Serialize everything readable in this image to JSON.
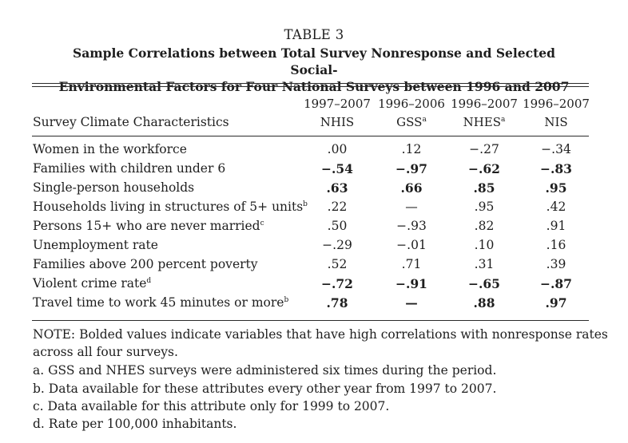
{
  "table": {
    "title": "TABLE 3",
    "caption_line1": "Sample Correlations between Total Survey Nonresponse and Selected Social-",
    "caption_line2": "Environmental Factors for Four National Surveys between 1996 and 2007",
    "row_header_label": "Survey Climate Characteristics",
    "columns": [
      {
        "years": "1997–2007",
        "name": "NHIS",
        "sup": ""
      },
      {
        "years": "1996–2006",
        "name": "GSS",
        "sup": "a"
      },
      {
        "years": "1996–2007",
        "name": "NHES",
        "sup": "a"
      },
      {
        "years": "1996–2007",
        "name": "NIS",
        "sup": ""
      }
    ],
    "rows": [
      {
        "label": "Women in the workforce",
        "sup": "",
        "bold": false,
        "values": [
          ".00",
          ".12",
          "−.27",
          "−.34"
        ]
      },
      {
        "label": "Families with children under 6",
        "sup": "",
        "bold": true,
        "values": [
          "−.54",
          "−.97",
          "−.62",
          "−.83"
        ]
      },
      {
        "label": "Single-person households",
        "sup": "",
        "bold": true,
        "values": [
          ".63",
          ".66",
          ".85",
          ".95"
        ]
      },
      {
        "label": "Households living in structures of 5+ units",
        "sup": "b",
        "bold": false,
        "values": [
          ".22",
          "—",
          ".95",
          ".42"
        ]
      },
      {
        "label": "Persons 15+ who are never married",
        "sup": "c",
        "bold": false,
        "values": [
          ".50",
          "−.93",
          ".82",
          ".91"
        ]
      },
      {
        "label": "Unemployment rate",
        "sup": "",
        "bold": false,
        "values": [
          "−.29",
          "−.01",
          ".10",
          ".16"
        ]
      },
      {
        "label": "Families above 200 percent poverty",
        "sup": "",
        "bold": false,
        "values": [
          ".52",
          ".71",
          ".31",
          ".39"
        ]
      },
      {
        "label": "Violent crime rate",
        "sup": "d",
        "bold": true,
        "values": [
          "−.72",
          "−.91",
          "−.65",
          "−.87"
        ]
      },
      {
        "label": "Travel time to work 45 minutes or more",
        "sup": "b",
        "bold": true,
        "values": [
          ".78",
          "—",
          ".88",
          ".97"
        ]
      }
    ],
    "notes": [
      "NOTE: Bolded values indicate variables that have high correlations with nonresponse rates",
      "across all four surveys.",
      "a. GSS and NHES surveys were administered six times during the period.",
      "b. Data available for these attributes every other year from 1997 to 2007.",
      "c. Data available for this attribute only for 1999 to 2007.",
      "d. Rate per 100,000 inhabitants."
    ]
  }
}
